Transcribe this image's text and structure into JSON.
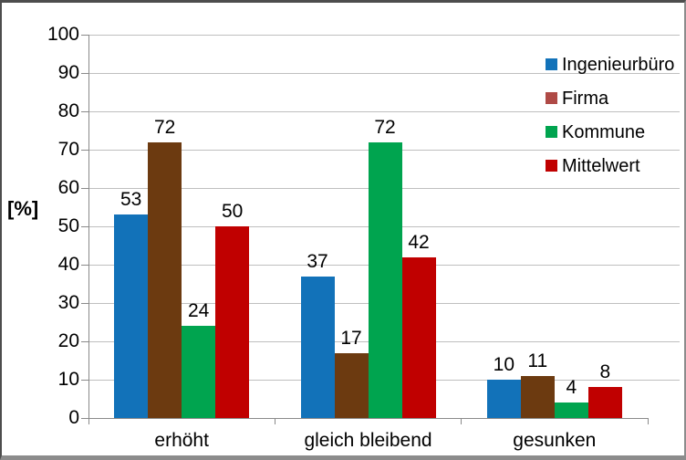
{
  "chart_data": {
    "type": "bar",
    "title": "",
    "ylabel": "[%]",
    "xlabel": "",
    "categories": [
      "erhöht",
      "gleich bleibend",
      "gesunken"
    ],
    "series": [
      {
        "name": "Ingenieurbüro",
        "bar_color": "#1272b9",
        "legend_color": "#1272b9",
        "values": [
          53,
          37,
          10
        ]
      },
      {
        "name": "Firma",
        "bar_color": "#6c3a10",
        "legend_color": "#af4a46",
        "values": [
          72,
          17,
          11
        ]
      },
      {
        "name": "Kommune",
        "bar_color": "#00a44f",
        "legend_color": "#00a44f",
        "values": [
          24,
          72,
          4
        ]
      },
      {
        "name": "Mittelwert",
        "bar_color": "#c00000",
        "legend_color": "#c00000",
        "values": [
          50,
          42,
          8
        ]
      }
    ],
    "ylim": [
      0,
      100
    ],
    "ytick_step": 10,
    "ytick_labels": [
      "0",
      "10",
      "20",
      "30",
      "40",
      "50",
      "60",
      "70",
      "80",
      "90",
      "100"
    ],
    "grid": true,
    "bar_value_labels_shown": true,
    "legend_position": "right-overlay",
    "colors": {
      "gridline": "#bfbfbf",
      "axis": "#8a8a8a",
      "text": "#000000",
      "frame_dark": "#4d4d4d",
      "frame_light": "#8c8c8c",
      "background": "#ffffff"
    }
  }
}
